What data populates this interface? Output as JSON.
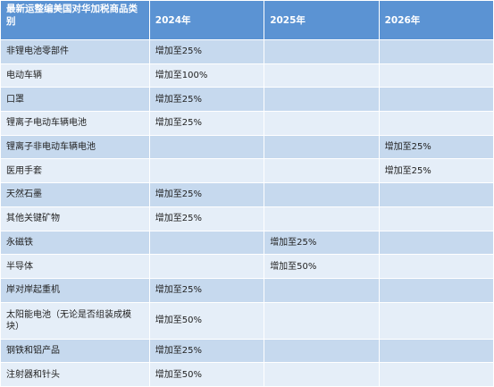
{
  "table": {
    "headers": {
      "category": "最新运整编美国对华加税商品类别",
      "y2024": "2024年",
      "y2025": "2025年",
      "y2026": "2026年"
    },
    "rows": [
      {
        "category": "非锂电池零部件",
        "y2024": "增加至25%",
        "y2025": "",
        "y2026": ""
      },
      {
        "category": "电动车辆",
        "y2024": "增加至100%",
        "y2025": "",
        "y2026": ""
      },
      {
        "category": "口罩",
        "y2024": "增加至25%",
        "y2025": "",
        "y2026": ""
      },
      {
        "category": "锂离子电动车辆电池",
        "y2024": "增加至25%",
        "y2025": "",
        "y2026": ""
      },
      {
        "category": "锂离子非电动车辆电池",
        "y2024": "",
        "y2025": "",
        "y2026": "增加至25%"
      },
      {
        "category": "医用手套",
        "y2024": "",
        "y2025": "",
        "y2026": "增加至25%"
      },
      {
        "category": "天然石墨",
        "y2024": "增加至25%",
        "y2025": "",
        "y2026": ""
      },
      {
        "category": "其他关键矿物",
        "y2024": "增加至25%",
        "y2025": "",
        "y2026": ""
      },
      {
        "category": "永磁铁",
        "y2024": "",
        "y2025": "增加至25%",
        "y2026": ""
      },
      {
        "category": "半导体",
        "y2024": "",
        "y2025": "增加至50%",
        "y2026": ""
      },
      {
        "category": "岸对岸起重机",
        "y2024": "增加至25%",
        "y2025": "",
        "y2026": ""
      },
      {
        "category": "太阳能电池（无论是否组装成模块）",
        "y2024": "增加至50%",
        "y2025": "",
        "y2026": ""
      },
      {
        "category": "钢铁和铝产品",
        "y2024": "增加至25%",
        "y2025": "",
        "y2026": ""
      },
      {
        "category": "注射器和针头",
        "y2024": "增加至50%",
        "y2025": "",
        "y2026": ""
      }
    ]
  }
}
